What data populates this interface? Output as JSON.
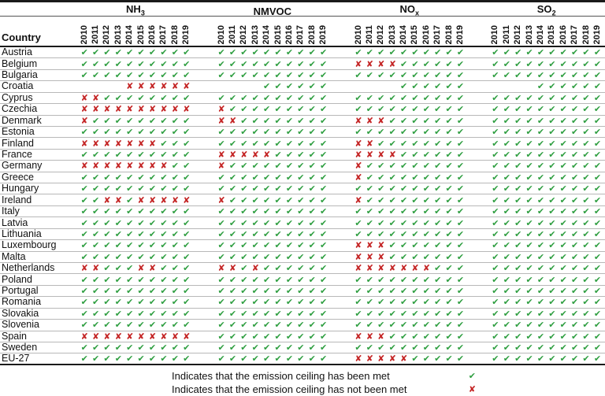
{
  "chart_data": {
    "type": "table",
    "country_header": "Country",
    "pollutants": [
      {
        "id": "nh3",
        "base": "NH",
        "sub": "3"
      },
      {
        "id": "nmvoc",
        "base": "NMVOC",
        "sub": ""
      },
      {
        "id": "nox",
        "base": "NO",
        "sub": "x"
      },
      {
        "id": "so2",
        "base": "SO",
        "sub": "2"
      }
    ],
    "years": [
      "2010",
      "2011",
      "2012",
      "2013",
      "2014",
      "2015",
      "2016",
      "2017",
      "2018",
      "2019"
    ],
    "cell_encoding": {
      "1": "ceiling met (green check)",
      "0": "ceiling not met (red x)",
      "-": "no data (blank)"
    },
    "rows": [
      {
        "country": "Austria",
        "nh3": "1111111111",
        "nmvoc": "1111111111",
        "nox": "1111111111",
        "so2": "1111111111"
      },
      {
        "country": "Belgium",
        "nh3": "1111111111",
        "nmvoc": "1111111111",
        "nox": "0000111111",
        "so2": "1111111111"
      },
      {
        "country": "Bulgaria",
        "nh3": "1111111111",
        "nmvoc": "1111111111",
        "nox": "1111111111",
        "so2": "1111111111"
      },
      {
        "country": "Croatia",
        "nh3": "----000000",
        "nmvoc": "----111111",
        "nox": "----111111",
        "so2": "----111111"
      },
      {
        "country": "Cyprus",
        "nh3": "0011111111",
        "nmvoc": "1111111111",
        "nox": "1111111111",
        "so2": "1111111111"
      },
      {
        "country": "Czechia",
        "nh3": "0000000000",
        "nmvoc": "0111111111",
        "nox": "1111111111",
        "so2": "1111111111"
      },
      {
        "country": "Denmark",
        "nh3": "0111111111",
        "nmvoc": "0011111111",
        "nox": "0001111111",
        "so2": "1111111111"
      },
      {
        "country": "Estonia",
        "nh3": "1111111111",
        "nmvoc": "1111111111",
        "nox": "1111111111",
        "so2": "1111111111"
      },
      {
        "country": "Finland",
        "nh3": "0000000111",
        "nmvoc": "1111111111",
        "nox": "0011111111",
        "so2": "1111111111"
      },
      {
        "country": "France",
        "nh3": "1111111111",
        "nmvoc": "0000011111",
        "nox": "0000111111",
        "so2": "1111111111"
      },
      {
        "country": "Germany",
        "nh3": "0000000011",
        "nmvoc": "0111111111",
        "nox": "0111111111",
        "so2": "1111111111"
      },
      {
        "country": "Greece",
        "nh3": "1111111111",
        "nmvoc": "1111111111",
        "nox": "0111111111",
        "so2": "1111111111"
      },
      {
        "country": "Hungary",
        "nh3": "1111111111",
        "nmvoc": "1111111111",
        "nox": "1111111111",
        "so2": "1111111111"
      },
      {
        "country": "Ireland",
        "nh3": "1100100000",
        "nmvoc": "0111111111",
        "nox": "0111111111",
        "so2": "1111111111"
      },
      {
        "country": "Italy",
        "nh3": "1111111111",
        "nmvoc": "1111111111",
        "nox": "1111111111",
        "so2": "1111111111"
      },
      {
        "country": "Latvia",
        "nh3": "1111111111",
        "nmvoc": "1111111111",
        "nox": "1111111111",
        "so2": "1111111111"
      },
      {
        "country": "Lithuania",
        "nh3": "1111111111",
        "nmvoc": "1111111111",
        "nox": "1111111111",
        "so2": "1111111111"
      },
      {
        "country": "Luxembourg",
        "nh3": "1111111111",
        "nmvoc": "1111111111",
        "nox": "0001111111",
        "so2": "1111111111"
      },
      {
        "country": "Malta",
        "nh3": "1111111111",
        "nmvoc": "1111111111",
        "nox": "0001111111",
        "so2": "1111111111"
      },
      {
        "country": "Netherlands",
        "nh3": "0011100111",
        "nmvoc": "0010111111",
        "nox": "0000000111",
        "so2": "1111111111"
      },
      {
        "country": "Poland",
        "nh3": "1111111111",
        "nmvoc": "1111111111",
        "nox": "1111111111",
        "so2": "1111111111"
      },
      {
        "country": "Portugal",
        "nh3": "1111111111",
        "nmvoc": "1111111111",
        "nox": "1111111111",
        "so2": "1111111111"
      },
      {
        "country": "Romania",
        "nh3": "1111111111",
        "nmvoc": "1111111111",
        "nox": "1111111111",
        "so2": "1111111111"
      },
      {
        "country": "Slovakia",
        "nh3": "1111111111",
        "nmvoc": "1111111111",
        "nox": "1111111111",
        "so2": "1111111111"
      },
      {
        "country": "Slovenia",
        "nh3": "1111111111",
        "nmvoc": "1111111111",
        "nox": "1111111111",
        "so2": "1111111111"
      },
      {
        "country": "Spain",
        "nh3": "0000000000",
        "nmvoc": "1111111111",
        "nox": "0001111111",
        "so2": "1111111111"
      },
      {
        "country": "Sweden",
        "nh3": "1111111111",
        "nmvoc": "1111111111",
        "nox": "1111111111",
        "so2": "1111111111"
      },
      {
        "country": "EU-27",
        "nh3": "1111111111",
        "nmvoc": "1111111111",
        "nox": "0000011111",
        "so2": "1111111111"
      }
    ]
  },
  "legend": {
    "met_text": "Indicates that the emission ceiling has been met",
    "not_met_text": "Indicates that the emission ceiling has not been met"
  },
  "symbols": {
    "met": "✔",
    "not_met": "✘"
  },
  "colors": {
    "met": "#2e9e40",
    "not_met": "#c42525"
  }
}
